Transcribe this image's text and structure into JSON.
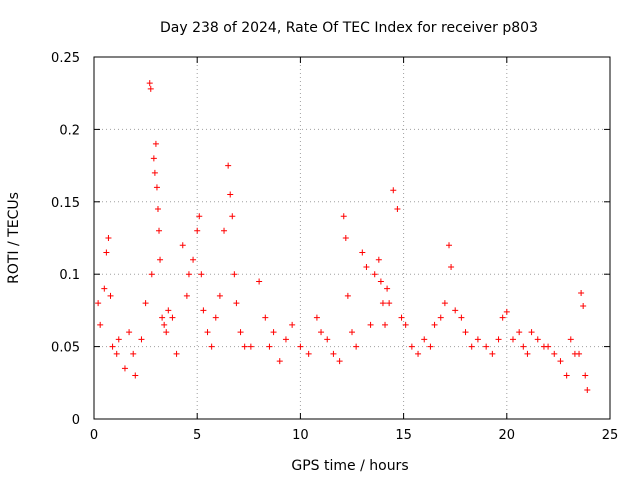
{
  "chart_data": {
    "type": "scatter",
    "title": "Day 238 of 2024, Rate Of TEC Index for receiver p803",
    "xlabel": "GPS time / hours",
    "ylabel": "ROTI / TECUs",
    "xlim": [
      0,
      25
    ],
    "ylim": [
      0,
      0.25
    ],
    "xticks": [
      "0",
      "5",
      "10",
      "15",
      "20",
      "25"
    ],
    "yticks": [
      "0",
      "0.05",
      "0.1",
      "0.15",
      "0.2",
      "0.25"
    ],
    "grid": true,
    "marker": "plus",
    "color": "#ff0000",
    "series": [
      {
        "x": [
          0.2,
          0.3,
          0.5,
          0.6,
          0.7,
          0.8,
          0.9,
          1.1,
          1.2,
          1.5,
          1.7,
          1.9,
          2.0,
          2.3,
          2.5,
          2.7,
          2.75,
          2.8,
          2.9,
          2.95,
          3.0,
          3.05,
          3.1,
          3.15,
          3.2,
          3.3,
          3.4,
          3.5,
          3.6,
          3.8,
          4.0,
          4.3,
          4.5,
          4.6,
          4.8,
          5.0,
          5.1,
          5.2,
          5.3,
          5.5,
          5.7,
          5.9,
          6.1,
          6.3,
          6.5,
          6.6,
          6.7,
          6.8,
          6.9,
          7.1,
          7.3,
          7.6,
          8.0,
          8.3,
          8.5,
          8.7,
          9.0,
          9.3,
          9.6,
          10.0,
          10.4,
          10.8,
          11.0,
          11.3,
          11.6,
          11.9,
          12.1,
          12.2,
          12.3,
          12.5,
          12.7,
          13.0,
          13.2,
          13.4,
          13.6,
          13.8,
          13.9,
          14.0,
          14.1,
          14.2,
          14.3,
          14.5,
          14.7,
          14.9,
          15.1,
          15.4,
          15.7,
          16.0,
          16.3,
          16.5,
          16.8,
          17.0,
          17.2,
          17.3,
          17.5,
          17.8,
          18.0,
          18.3,
          18.6,
          19.0,
          19.3,
          19.6,
          19.8,
          20.0,
          20.3,
          20.6,
          20.8,
          21.0,
          21.2,
          21.5,
          21.8,
          22.0,
          22.3,
          22.6,
          22.9,
          23.1,
          23.3,
          23.5,
          23.6,
          23.7,
          23.8,
          23.9
        ],
        "y": [
          0.08,
          0.065,
          0.09,
          0.115,
          0.125,
          0.085,
          0.05,
          0.045,
          0.055,
          0.035,
          0.06,
          0.045,
          0.03,
          0.055,
          0.08,
          0.232,
          0.228,
          0.1,
          0.18,
          0.17,
          0.19,
          0.16,
          0.145,
          0.13,
          0.11,
          0.07,
          0.065,
          0.06,
          0.075,
          0.07,
          0.045,
          0.12,
          0.085,
          0.1,
          0.11,
          0.13,
          0.14,
          0.1,
          0.075,
          0.06,
          0.05,
          0.07,
          0.085,
          0.13,
          0.175,
          0.155,
          0.14,
          0.1,
          0.08,
          0.06,
          0.05,
          0.05,
          0.095,
          0.07,
          0.05,
          0.06,
          0.04,
          0.055,
          0.065,
          0.05,
          0.045,
          0.07,
          0.06,
          0.055,
          0.045,
          0.04,
          0.14,
          0.125,
          0.085,
          0.06,
          0.05,
          0.115,
          0.105,
          0.065,
          0.1,
          0.11,
          0.095,
          0.08,
          0.065,
          0.09,
          0.08,
          0.158,
          0.145,
          0.07,
          0.065,
          0.05,
          0.045,
          0.055,
          0.05,
          0.065,
          0.07,
          0.08,
          0.12,
          0.105,
          0.075,
          0.07,
          0.06,
          0.05,
          0.055,
          0.05,
          0.045,
          0.055,
          0.07,
          0.074,
          0.055,
          0.06,
          0.05,
          0.045,
          0.06,
          0.055,
          0.05,
          0.05,
          0.045,
          0.04,
          0.03,
          0.055,
          0.045,
          0.045,
          0.087,
          0.078,
          0.03,
          0.02
        ]
      }
    ]
  }
}
